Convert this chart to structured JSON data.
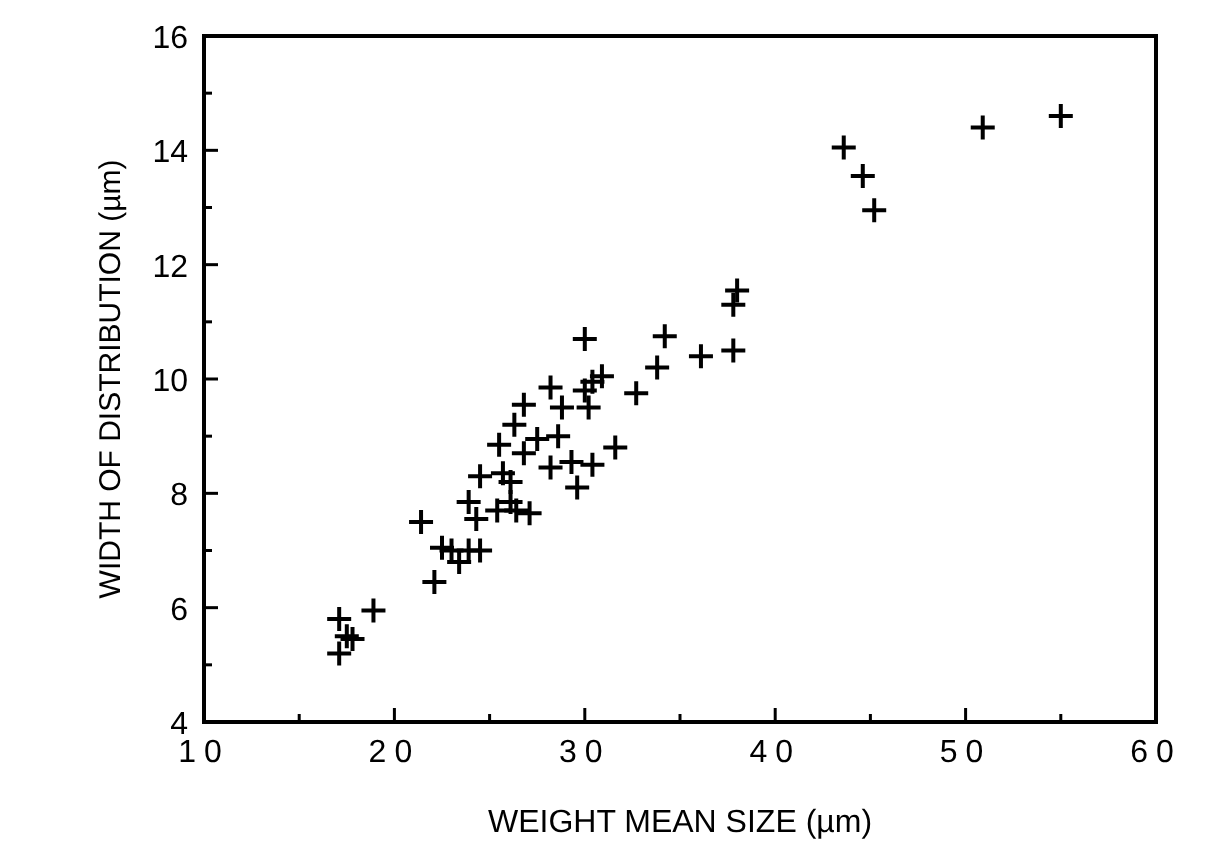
{
  "chart_data": {
    "type": "scatter",
    "xlabel": "WEIGHT MEAN SIZE (µm)",
    "ylabel": "WIDTH OF DISTRIBUTION (µm)",
    "marker": "cross",
    "grid": false,
    "xlim": [
      10,
      60
    ],
    "ylim": [
      4,
      16
    ],
    "xticks": [
      10,
      {
        "value": 15,
        "label": null
      },
      20,
      {
        "value": 25,
        "label": null
      },
      30,
      {
        "value": 35,
        "label": null
      },
      40,
      {
        "value": 45,
        "label": null
      },
      50,
      {
        "value": 55,
        "label": null
      },
      60
    ],
    "yticks": [
      4,
      {
        "value": 5,
        "label": null
      },
      6,
      {
        "value": 7,
        "label": null
      },
      8,
      {
        "value": 9,
        "label": null
      },
      10,
      {
        "value": 11,
        "label": null
      },
      12,
      {
        "value": 13,
        "label": null
      },
      14,
      {
        "value": 15,
        "label": null
      },
      16
    ],
    "series": [
      {
        "color": "#000000",
        "x": [
          17.1,
          17.1,
          17.5,
          17.8,
          18.9,
          21.4,
          22.1,
          22.5,
          23.0,
          23.4,
          23.9,
          24.5,
          23.9,
          24.3,
          24.5,
          25.4,
          25.7,
          25.5,
          26.1,
          26.1,
          26.4,
          26.3,
          26.8,
          26.8,
          27.1,
          27.5,
          28.2,
          28.2,
          28.8,
          28.6,
          29.3,
          29.6,
          30.0,
          30.0,
          30.4,
          30.9,
          30.2,
          30.4,
          31.6,
          32.7,
          33.8,
          34.2,
          36.1,
          37.8,
          37.8,
          38.0,
          43.6,
          44.6,
          45.2,
          50.9,
          55.0
        ],
        "values": [
          5.8,
          5.2,
          5.5,
          5.45,
          5.95,
          7.5,
          6.45,
          7.05,
          7.0,
          6.8,
          7.0,
          7.0,
          7.85,
          7.55,
          8.3,
          7.7,
          8.35,
          8.85,
          8.2,
          7.85,
          7.7,
          9.2,
          9.55,
          8.7,
          7.65,
          8.95,
          9.85,
          8.45,
          9.5,
          9.0,
          8.55,
          8.1,
          10.7,
          9.8,
          9.95,
          10.05,
          9.5,
          8.5,
          8.8,
          9.75,
          10.2,
          10.75,
          10.4,
          10.5,
          11.3,
          11.55,
          14.05,
          13.55,
          12.95,
          14.4,
          14.6
        ]
      }
    ]
  }
}
